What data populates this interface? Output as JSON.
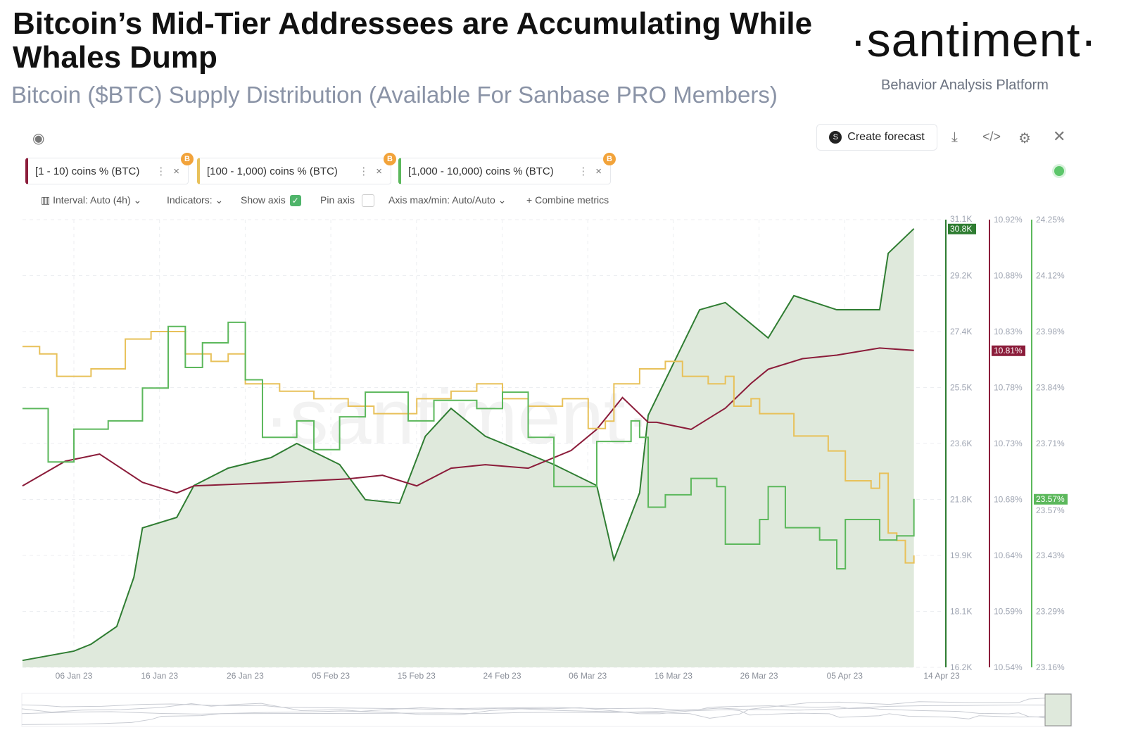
{
  "header": {
    "title": "Bitcoin’s Mid-Tier Addressees are Accumulating While Whales Dump",
    "subtitle": "Bitcoin ($BTC) Supply Distribution (Available For Sanbase PRO Members)",
    "logo": "·santiment·",
    "tagline": "Behavior Analysis Platform"
  },
  "toolbar": {
    "create_forecast": "Create forecast",
    "icons": [
      "eye-icon",
      "download-icon",
      "code-icon",
      "gear-icon",
      "close-icon"
    ],
    "interval": "Interval: Auto (4h)",
    "indicators": "Indicators:",
    "show_axis": "Show axis",
    "show_axis_checked": true,
    "pin_axis": "Pin axis",
    "pin_axis_checked": false,
    "axis_maxmin": "Axis max/min: Auto/Auto",
    "combine": "Combine metrics"
  },
  "metrics": [
    {
      "label": "[1 - 10) coins % (BTC)",
      "color": "#8b1c3a"
    },
    {
      "label": "[100 - 1,000) coins % (BTC)",
      "color": "#e8c15a"
    },
    {
      "label": "[1,000 - 10,000) coins % (BTC)",
      "color": "#5cb85c"
    }
  ],
  "watermark": "·santiment·",
  "chart_data": {
    "type": "line",
    "x_ticks": [
      "06 Jan 23",
      "16 Jan 23",
      "26 Jan 23",
      "05 Feb 23",
      "15 Feb 23",
      "24 Feb 23",
      "06 Mar 23",
      "16 Mar 23",
      "26 Mar 23",
      "05 Apr 23",
      "14 Apr 23"
    ],
    "grid": true,
    "series": [
      {
        "type": "area",
        "color": "#2f7d32",
        "fill": "#dfe9dc",
        "unit": "K",
        "ylim": [
          16.2,
          31.1
        ],
        "axis_visible": true,
        "last_label": "30.8K",
        "ticks": [
          "31.1K",
          "29.2K",
          "27.4K",
          "25.5K",
          "23.6K",
          "21.8K",
          "19.9K",
          "18.1K",
          "16.2K"
        ],
        "x": [
          "2022-12-31",
          "2023-01-06",
          "2023-01-08",
          "2023-01-11",
          "2023-01-13",
          "2023-01-14",
          "2023-01-18",
          "2023-01-20",
          "2023-01-24",
          "2023-01-29",
          "2023-02-01",
          "2023-02-06",
          "2023-02-09",
          "2023-02-13",
          "2023-02-16",
          "2023-02-19",
          "2023-02-23",
          "2023-02-27",
          "2023-03-03",
          "2023-03-08",
          "2023-03-10",
          "2023-03-13",
          "2023-03-14",
          "2023-03-18",
          "2023-03-20",
          "2023-03-23",
          "2023-03-28",
          "2023-03-31",
          "2023-04-05",
          "2023-04-10",
          "2023-04-11",
          "2023-04-14"
        ],
        "values": [
          16.43,
          16.74,
          16.97,
          17.56,
          19.2,
          20.84,
          21.19,
          22.25,
          22.83,
          23.18,
          23.65,
          22.95,
          21.78,
          21.66,
          23.89,
          24.82,
          23.89,
          23.42,
          22.95,
          22.25,
          19.78,
          22.01,
          24.59,
          26.93,
          28.1,
          28.34,
          27.16,
          28.57,
          28.1,
          28.1,
          29.98,
          30.8
        ]
      },
      {
        "name": "[1 - 10) coins % (BTC)",
        "type": "line",
        "color": "#8b1c3a",
        "ylim": [
          10.54,
          10.92
        ],
        "axis_visible": true,
        "last_label": "10.81%",
        "ticks": [
          "10.92%",
          "10.88%",
          "10.83%",
          "10.78%",
          "10.73%",
          "10.68%",
          "10.64%",
          "10.59%",
          "10.54%"
        ],
        "x": [
          "2022-12-31",
          "2023-01-05",
          "2023-01-09",
          "2023-01-14",
          "2023-01-18",
          "2023-01-20",
          "2023-01-30",
          "2023-02-07",
          "2023-02-11",
          "2023-02-15",
          "2023-02-19",
          "2023-02-23",
          "2023-02-28",
          "2023-03-05",
          "2023-03-08",
          "2023-03-11",
          "2023-03-14",
          "2023-03-15",
          "2023-03-19",
          "2023-03-23",
          "2023-03-26",
          "2023-03-28",
          "2023-04-01",
          "2023-04-05",
          "2023-04-10",
          "2023-04-14"
        ],
        "values": [
          10.694,
          10.715,
          10.721,
          10.697,
          10.688,
          10.694,
          10.697,
          10.7,
          10.703,
          10.694,
          10.709,
          10.712,
          10.709,
          10.724,
          10.742,
          10.769,
          10.748,
          10.748,
          10.742,
          10.76,
          10.781,
          10.793,
          10.802,
          10.805,
          10.811,
          10.809
        ]
      },
      {
        "name": "[100 - 1,000) coins % (BTC)",
        "type": "step",
        "color": "#e8c15a",
        "ylim": [
          22.6,
          23.2
        ],
        "axis_visible": false,
        "x": [
          "2022-12-31",
          "2023-01-02",
          "2023-01-04",
          "2023-01-08",
          "2023-01-12",
          "2023-01-15",
          "2023-01-19",
          "2023-01-22",
          "2023-01-24",
          "2023-01-26",
          "2023-01-30",
          "2023-02-03",
          "2023-02-07",
          "2023-02-10",
          "2023-02-15",
          "2023-02-19",
          "2023-02-22",
          "2023-02-25",
          "2023-02-28",
          "2023-03-04",
          "2023-03-07",
          "2023-03-09",
          "2023-03-10",
          "2023-03-13",
          "2023-03-16",
          "2023-03-18",
          "2023-03-21",
          "2023-03-23",
          "2023-03-24",
          "2023-03-26",
          "2023-03-27",
          "2023-03-31",
          "2023-04-04",
          "2023-04-06",
          "2023-04-09",
          "2023-04-10",
          "2023-04-11",
          "2023-04-12",
          "2023-04-13",
          "2023-04-14"
        ],
        "values": [
          23.03,
          23.02,
          22.99,
          23.0,
          23.04,
          23.05,
          23.02,
          23.01,
          23.02,
          22.98,
          22.97,
          22.96,
          22.95,
          22.94,
          22.96,
          22.97,
          22.98,
          22.96,
          22.95,
          22.96,
          22.92,
          22.93,
          22.98,
          23.0,
          23.01,
          22.99,
          22.98,
          22.99,
          22.95,
          22.96,
          22.94,
          22.91,
          22.89,
          22.85,
          22.84,
          22.86,
          22.78,
          22.77,
          22.74,
          22.75
        ]
      },
      {
        "name": "[1,000 - 10,000) coins % (BTC)",
        "type": "step",
        "color": "#5cb85c",
        "ylim": [
          23.16,
          24.25
        ],
        "axis_visible": true,
        "last_label": "23.57%",
        "ticks": [
          "24.25%",
          "24.12%",
          "23.98%",
          "23.84%",
          "23.71%",
          "23.57%",
          "23.43%",
          "23.29%",
          "23.16%"
        ],
        "x": [
          "2022-12-31",
          "2023-01-03",
          "2023-01-06",
          "2023-01-10",
          "2023-01-14",
          "2023-01-17",
          "2023-01-19",
          "2023-01-21",
          "2023-01-24",
          "2023-01-26",
          "2023-01-28",
          "2023-02-01",
          "2023-02-03",
          "2023-02-06",
          "2023-02-09",
          "2023-02-14",
          "2023-02-17",
          "2023-02-22",
          "2023-02-25",
          "2023-02-28",
          "2023-03-03",
          "2023-03-05",
          "2023-03-08",
          "2023-03-12",
          "2023-03-13",
          "2023-03-14",
          "2023-03-16",
          "2023-03-19",
          "2023-03-22",
          "2023-03-23",
          "2023-03-27",
          "2023-03-28",
          "2023-03-30",
          "2023-04-03",
          "2023-04-05",
          "2023-04-06",
          "2023-04-10",
          "2023-04-12",
          "2023-04-14"
        ],
        "values": [
          23.79,
          23.66,
          23.74,
          23.76,
          23.84,
          23.99,
          23.89,
          23.95,
          24.0,
          23.86,
          23.72,
          23.76,
          23.69,
          23.77,
          23.83,
          23.76,
          23.81,
          23.79,
          23.83,
          23.72,
          23.6,
          23.6,
          23.71,
          23.76,
          23.72,
          23.55,
          23.58,
          23.62,
          23.6,
          23.46,
          23.52,
          23.6,
          23.5,
          23.47,
          23.4,
          23.52,
          23.47,
          23.48,
          23.57
        ]
      }
    ]
  }
}
